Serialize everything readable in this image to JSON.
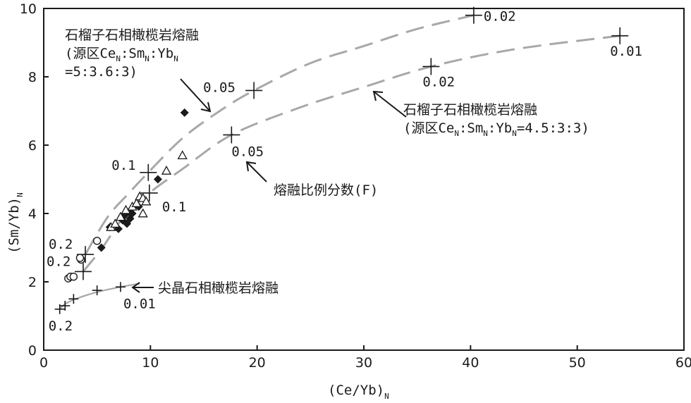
{
  "chart_data": {
    "type": "scatter",
    "xlabel_main": "(Ce/Yb)",
    "xlabel_sub": "N",
    "ylabel_main": "(Sm/Yb)",
    "ylabel_sub": "N",
    "xlim": [
      0,
      60
    ],
    "ylim": [
      0,
      10
    ],
    "xticks": [
      "0",
      "10",
      "20",
      "30",
      "40",
      "50",
      "60"
    ],
    "yticks": [
      "0",
      "2",
      "4",
      "6",
      "8",
      "10"
    ],
    "grid": false,
    "curves": [
      {
        "points": [
          [
            3.7,
            2.3
          ],
          [
            5.5,
            3.0
          ],
          [
            7.5,
            3.9
          ],
          [
            9.9,
            4.6
          ],
          [
            13.0,
            5.3
          ],
          [
            17.6,
            6.3
          ],
          [
            24.0,
            7.1
          ],
          [
            30.0,
            7.7
          ],
          [
            36.3,
            8.3
          ],
          [
            44.0,
            8.8
          ],
          [
            54.0,
            9.2
          ]
        ],
        "markers": [
          {
            "x": 3.7,
            "y": 2.3,
            "label": "0.2"
          },
          {
            "x": 9.9,
            "y": 4.6,
            "label": "0.1"
          },
          {
            "x": 17.6,
            "y": 6.3,
            "label": "0.05"
          },
          {
            "x": 36.3,
            "y": 8.3,
            "label": "0.02"
          },
          {
            "x": 54.0,
            "y": 9.2,
            "label": "0.01"
          }
        ]
      },
      {
        "points": [
          [
            3.9,
            2.8
          ],
          [
            6.0,
            3.9
          ],
          [
            8.0,
            4.6
          ],
          [
            9.8,
            5.2
          ],
          [
            13.0,
            6.2
          ],
          [
            16.5,
            7.0
          ],
          [
            19.7,
            7.6
          ],
          [
            25.0,
            8.4
          ],
          [
            30.0,
            8.9
          ],
          [
            35.0,
            9.4
          ],
          [
            40.3,
            9.8
          ]
        ],
        "markers": [
          {
            "x": 3.9,
            "y": 2.8,
            "label": "0.2"
          },
          {
            "x": 9.8,
            "y": 5.2,
            "label": "0.1"
          },
          {
            "x": 19.7,
            "y": 7.6,
            "label": "0.05"
          },
          {
            "x": 40.3,
            "y": 9.8,
            "label": "0.02"
          }
        ]
      },
      {
        "points": [
          [
            1.5,
            1.2
          ],
          [
            2.0,
            1.35
          ],
          [
            3.0,
            1.5
          ],
          [
            5.0,
            1.7
          ],
          [
            7.2,
            1.85
          ],
          [
            9.0,
            1.95
          ]
        ],
        "markers": [
          {
            "x": 1.5,
            "y": 1.2,
            "label": "0.2"
          },
          {
            "x": 2.0,
            "y": 1.3,
            "label": ""
          },
          {
            "x": 2.8,
            "y": 1.5,
            "label": ""
          },
          {
            "x": 5.0,
            "y": 1.75,
            "label": ""
          },
          {
            "x": 7.2,
            "y": 1.85,
            "label": "0.01"
          }
        ]
      }
    ],
    "samples": {
      "open_circle": [
        [
          2.3,
          2.1
        ],
        [
          2.5,
          2.15
        ],
        [
          2.8,
          2.15
        ],
        [
          3.5,
          2.65
        ],
        [
          3.4,
          2.7
        ],
        [
          5.0,
          3.2
        ]
      ],
      "filled_diamond": [
        [
          5.4,
          3.0
        ],
        [
          6.2,
          3.6
        ],
        [
          7.0,
          3.55
        ],
        [
          7.4,
          3.8
        ],
        [
          7.6,
          3.95
        ],
        [
          7.8,
          3.7
        ],
        [
          8.1,
          3.85
        ],
        [
          8.3,
          4.0
        ],
        [
          8.0,
          4.05
        ],
        [
          8.9,
          4.2
        ],
        [
          10.7,
          5.0
        ],
        [
          13.2,
          6.95
        ]
      ],
      "open_triangle": [
        [
          6.3,
          3.6
        ],
        [
          6.7,
          3.7
        ],
        [
          7.2,
          3.9
        ],
        [
          7.7,
          4.1
        ],
        [
          8.3,
          4.2
        ],
        [
          8.7,
          4.3
        ],
        [
          9.0,
          4.5
        ],
        [
          9.3,
          4.45
        ],
        [
          9.6,
          4.35
        ],
        [
          9.3,
          4.0
        ],
        [
          11.5,
          5.25
        ],
        [
          13.0,
          5.7
        ]
      ]
    },
    "annotations": [
      {
        "lines": [
          [
            "石榴子石相橄榄岩熔融",
            ""
          ],
          [
            "(源区Ce",
            "N"
          ],
          [
            ":Sm",
            "N"
          ],
          [
            ":Yb",
            "N"
          ]
        ],
        "text_line1": "石榴子石相橄榄岩熔融",
        "text_line2": "(源区CeN:SmN:YbN",
        "text_line3": "=5:3.6:3)"
      },
      {
        "text_line1": "石榴子石相橄榄岩熔融",
        "text_line2": "(源区CeN:SmN:YbN=4.5:3:3)"
      },
      {
        "text_line1": "熔融比例分数(F)"
      },
      {
        "text_line1": "尖晶石相橄榄岩熔融"
      }
    ],
    "ann": {
      "upper_title": "石榴子石相橄榄岩熔融",
      "upper_src_a": "(源区Ce",
      "upper_src_b": ":Sm",
      "upper_src_c": ":Yb",
      "upper_ratio": "=5:3.6:3)",
      "lower_title": "石榴子石相橄榄岩熔融",
      "lower_src_a": "(源区Ce",
      "lower_src_b": ":Sm",
      "lower_src_c": ":Yb",
      "lower_src_d": "=4.5:3:3)",
      "fraction_label": "熔融比例分数(F)",
      "spinel_label": "尖晶石相橄榄岩熔融",
      "sub_n": "N"
    }
  }
}
